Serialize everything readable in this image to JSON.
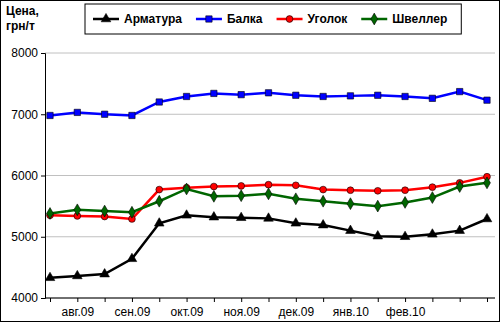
{
  "chart_data": {
    "type": "line",
    "y_label": "Цена, грн/т",
    "categories": [
      null,
      "авг.09",
      null,
      "сен.09",
      null,
      "окт.09",
      null,
      "ноя.09",
      null,
      "дек.09",
      null,
      "янв.10",
      null,
      "фев.10",
      null,
      null,
      null
    ],
    "ylim": [
      4000,
      8000
    ],
    "yticks": [
      4000,
      5000,
      6000,
      7000,
      8000
    ],
    "grid": true,
    "legend": "top",
    "series": [
      {
        "name": "Арматура",
        "color": "#000000",
        "marker": "triangle",
        "values": [
          4330,
          4360,
          4390,
          4640,
          5220,
          5350,
          5320,
          5310,
          5300,
          5220,
          5190,
          5100,
          5010,
          5000,
          5040,
          5100,
          5290
        ]
      },
      {
        "name": "Балка",
        "color": "#0000ff",
        "marker": "square",
        "values": [
          6980,
          7030,
          7000,
          6980,
          7200,
          7290,
          7340,
          7320,
          7350,
          7310,
          7290,
          7300,
          7310,
          7290,
          7260,
          7370,
          7230
        ]
      },
      {
        "name": "Уголок",
        "color": "#ff0000",
        "marker": "circle",
        "values": [
          5350,
          5340,
          5330,
          5290,
          5770,
          5800,
          5820,
          5830,
          5850,
          5840,
          5770,
          5760,
          5750,
          5760,
          5810,
          5880,
          5980
        ]
      },
      {
        "name": "Швеллер",
        "color": "#006600",
        "marker": "diamond",
        "values": [
          5380,
          5440,
          5420,
          5400,
          5580,
          5780,
          5660,
          5670,
          5700,
          5620,
          5580,
          5540,
          5500,
          5560,
          5640,
          5820,
          5880
        ]
      }
    ]
  }
}
